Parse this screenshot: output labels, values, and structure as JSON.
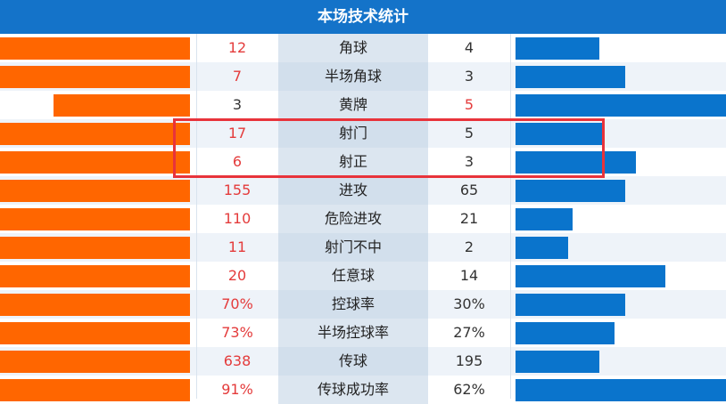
{
  "title": "本场技术统计",
  "colors": {
    "header": "#1473c9",
    "home_bar": "#ff6600",
    "away_bar": "#0a74cc",
    "highlight": "#e8333b"
  },
  "rows": [
    {
      "label": "角球",
      "home": "12",
      "away": "4",
      "home_bar": 1.0,
      "away_bar": 0.4,
      "lead": "home"
    },
    {
      "label": "半场角球",
      "home": "7",
      "away": "3",
      "home_bar": 1.0,
      "away_bar": 0.52,
      "lead": "home"
    },
    {
      "label": "黄牌",
      "home": "3",
      "away": "5",
      "home_bar": 0.72,
      "away_bar": 1.0,
      "lead": "away"
    },
    {
      "label": "射门",
      "home": "17",
      "away": "5",
      "home_bar": 1.0,
      "away_bar": 0.42,
      "lead": "home"
    },
    {
      "label": "射正",
      "home": "6",
      "away": "3",
      "home_bar": 1.0,
      "away_bar": 0.57,
      "lead": "home"
    },
    {
      "label": "进攻",
      "home": "155",
      "away": "65",
      "home_bar": 1.0,
      "away_bar": 0.52,
      "lead": "home"
    },
    {
      "label": "危险进攻",
      "home": "110",
      "away": "21",
      "home_bar": 1.0,
      "away_bar": 0.27,
      "lead": "home"
    },
    {
      "label": "射门不中",
      "home": "11",
      "away": "2",
      "home_bar": 1.0,
      "away_bar": 0.25,
      "lead": "home"
    },
    {
      "label": "任意球",
      "home": "20",
      "away": "14",
      "home_bar": 1.0,
      "away_bar": 0.71,
      "lead": "home"
    },
    {
      "label": "控球率",
      "home": "70%",
      "away": "30%",
      "home_bar": 1.0,
      "away_bar": 0.52,
      "lead": "home"
    },
    {
      "label": "半场控球率",
      "home": "73%",
      "away": "27%",
      "home_bar": 1.0,
      "away_bar": 0.47,
      "lead": "home"
    },
    {
      "label": "传球",
      "home": "638",
      "away": "195",
      "home_bar": 1.0,
      "away_bar": 0.4,
      "lead": "home"
    },
    {
      "label": "传球成功率",
      "home": "91%",
      "away": "62%",
      "home_bar": 1.0,
      "away_bar": 1.0,
      "lead": "home"
    }
  ]
}
